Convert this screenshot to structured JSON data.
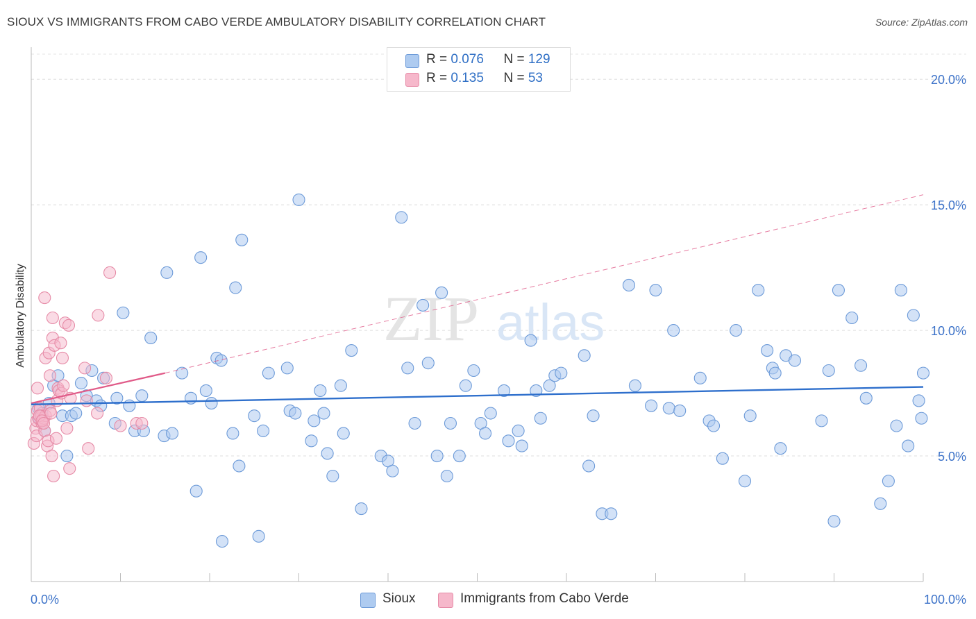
{
  "header": {
    "title": "SIOUX VS IMMIGRANTS FROM CABO VERDE AMBULATORY DISABILITY CORRELATION CHART",
    "source": "Source: ZipAtlas.com"
  },
  "watermark": {
    "part1": "ZIP",
    "part2": "atlas"
  },
  "legend": {
    "rows": [
      {
        "r_label": "R = ",
        "r_value": "0.076",
        "n_label": "N = ",
        "n_value": "129"
      },
      {
        "r_label": "R = ",
        "r_value": " 0.135",
        "n_label": "N = ",
        "n_value": " 53"
      }
    ]
  },
  "colors": {
    "sioux_fill": "#aecbf0",
    "sioux_stroke": "#6c9ad8",
    "sioux_line": "#2e6fcc",
    "cabo_fill": "#f6b8cb",
    "cabo_stroke": "#e68aa6",
    "cabo_line": "#e05a88",
    "axis_label": "#3d73c9"
  },
  "chart_data": {
    "type": "scatter",
    "title": "SIOUX VS IMMIGRANTS FROM CABO VERDE AMBULATORY DISABILITY CORRELATION CHART",
    "xlabel": "",
    "ylabel": "Ambulatory Disability",
    "xlim": [
      0,
      100
    ],
    "ylim": [
      0,
      21
    ],
    "x_tick_labels": [
      "0.0%",
      "100.0%"
    ],
    "y_ticks": [
      5,
      10,
      15,
      20
    ],
    "y_tick_labels": [
      "5.0%",
      "10.0%",
      "15.0%",
      "20.0%"
    ],
    "grid": true,
    "legend_position": "top-center",
    "series": [
      {
        "name": "Sioux",
        "r": 0.076,
        "n": 129,
        "trend": {
          "x0": 0,
          "y0": 7.05,
          "x1": 100,
          "y1": 7.75
        },
        "points": [
          [
            0.8,
            6.9
          ],
          [
            0.9,
            6.5
          ],
          [
            1.2,
            6.7
          ],
          [
            1.5,
            6.0
          ],
          [
            2.0,
            7.1
          ],
          [
            2.5,
            7.8
          ],
          [
            3.0,
            8.2
          ],
          [
            3.5,
            6.6
          ],
          [
            4.0,
            5.0
          ],
          [
            4.5,
            6.6
          ],
          [
            5.0,
            6.7
          ],
          [
            5.6,
            7.9
          ],
          [
            6.2,
            7.4
          ],
          [
            6.8,
            8.4
          ],
          [
            7.3,
            7.2
          ],
          [
            7.8,
            7.0
          ],
          [
            8.1,
            8.1
          ],
          [
            9.4,
            6.3
          ],
          [
            9.6,
            7.3
          ],
          [
            10.3,
            10.7
          ],
          [
            11.0,
            7.0
          ],
          [
            11.6,
            6.0
          ],
          [
            12.4,
            7.4
          ],
          [
            12.6,
            6.0
          ],
          [
            13.4,
            9.7
          ],
          [
            14.9,
            5.8
          ],
          [
            15.2,
            12.3
          ],
          [
            15.8,
            5.9
          ],
          [
            16.9,
            8.3
          ],
          [
            17.9,
            7.3
          ],
          [
            18.5,
            3.6
          ],
          [
            19.0,
            12.9
          ],
          [
            19.6,
            7.6
          ],
          [
            20.2,
            7.1
          ],
          [
            20.8,
            8.9
          ],
          [
            21.3,
            8.8
          ],
          [
            21.4,
            1.6
          ],
          [
            22.6,
            5.9
          ],
          [
            22.9,
            11.7
          ],
          [
            23.3,
            4.6
          ],
          [
            23.6,
            13.6
          ],
          [
            25.0,
            6.6
          ],
          [
            25.5,
            1.8
          ],
          [
            26.0,
            6.0
          ],
          [
            26.6,
            8.3
          ],
          [
            28.7,
            8.5
          ],
          [
            29.0,
            6.8
          ],
          [
            29.6,
            6.7
          ],
          [
            30.0,
            15.2
          ],
          [
            31.4,
            5.6
          ],
          [
            31.7,
            6.4
          ],
          [
            32.4,
            7.6
          ],
          [
            32.8,
            6.7
          ],
          [
            33.2,
            5.1
          ],
          [
            33.8,
            4.2
          ],
          [
            34.7,
            7.8
          ],
          [
            35.0,
            5.9
          ],
          [
            35.9,
            9.2
          ],
          [
            37.0,
            2.9
          ],
          [
            39.2,
            5.0
          ],
          [
            40.0,
            4.8
          ],
          [
            40.5,
            4.4
          ],
          [
            41.5,
            14.5
          ],
          [
            42.2,
            8.5
          ],
          [
            43.0,
            6.3
          ],
          [
            43.9,
            11.0
          ],
          [
            44.5,
            8.7
          ],
          [
            45.5,
            5.0
          ],
          [
            46.0,
            11.5
          ],
          [
            46.6,
            4.2
          ],
          [
            47.0,
            6.3
          ],
          [
            48.0,
            5.0
          ],
          [
            48.7,
            7.8
          ],
          [
            49.6,
            8.4
          ],
          [
            50.4,
            6.3
          ],
          [
            50.9,
            5.9
          ],
          [
            51.5,
            6.7
          ],
          [
            53.0,
            7.6
          ],
          [
            53.5,
            5.6
          ],
          [
            54.6,
            6.0
          ],
          [
            55.0,
            5.4
          ],
          [
            56.0,
            9.6
          ],
          [
            56.6,
            7.6
          ],
          [
            57.1,
            6.5
          ],
          [
            58.1,
            7.8
          ],
          [
            58.7,
            8.2
          ],
          [
            59.4,
            8.3
          ],
          [
            62.0,
            9.0
          ],
          [
            62.5,
            4.6
          ],
          [
            63.0,
            6.6
          ],
          [
            64.0,
            2.7
          ],
          [
            65.0,
            2.7
          ],
          [
            67.0,
            11.8
          ],
          [
            67.7,
            7.8
          ],
          [
            69.5,
            7.0
          ],
          [
            70.0,
            11.6
          ],
          [
            71.5,
            6.9
          ],
          [
            72.0,
            10.0
          ],
          [
            72.7,
            6.8
          ],
          [
            75.0,
            8.1
          ],
          [
            76.0,
            6.4
          ],
          [
            76.5,
            6.2
          ],
          [
            77.5,
            4.9
          ],
          [
            79.0,
            10.0
          ],
          [
            80.0,
            4.0
          ],
          [
            80.6,
            6.6
          ],
          [
            81.5,
            11.6
          ],
          [
            82.5,
            9.2
          ],
          [
            83.1,
            8.5
          ],
          [
            83.4,
            8.3
          ],
          [
            84.0,
            5.3
          ],
          [
            84.6,
            9.0
          ],
          [
            85.6,
            8.8
          ],
          [
            88.6,
            6.4
          ],
          [
            89.4,
            8.4
          ],
          [
            90.0,
            2.4
          ],
          [
            90.5,
            11.6
          ],
          [
            92.0,
            10.5
          ],
          [
            93.0,
            8.6
          ],
          [
            93.6,
            7.3
          ],
          [
            95.2,
            3.1
          ],
          [
            96.1,
            4.0
          ],
          [
            97.0,
            6.2
          ],
          [
            97.5,
            11.6
          ],
          [
            98.3,
            5.4
          ],
          [
            98.9,
            10.6
          ],
          [
            99.5,
            7.2
          ],
          [
            99.8,
            6.5
          ],
          [
            100.0,
            8.3
          ]
        ]
      },
      {
        "name": "Immigrants from Cabo Verde",
        "r": 0.135,
        "n": 53,
        "trend": {
          "x0": 0,
          "y0": 7.1,
          "x1": 15,
          "y1": 8.3
        },
        "trend_extended": {
          "x0": 15,
          "y0": 8.3,
          "x1": 100,
          "y1": 15.4
        },
        "points": [
          [
            0.3,
            5.5
          ],
          [
            0.5,
            6.1
          ],
          [
            0.6,
            6.4
          ],
          [
            0.6,
            5.8
          ],
          [
            0.7,
            7.7
          ],
          [
            0.7,
            6.8
          ],
          [
            0.8,
            6.5
          ],
          [
            1.0,
            6.9
          ],
          [
            1.1,
            6.6
          ],
          [
            1.2,
            6.3
          ],
          [
            1.3,
            6.4
          ],
          [
            1.4,
            6.5
          ],
          [
            1.5,
            6.0
          ],
          [
            1.5,
            11.3
          ],
          [
            1.6,
            8.9
          ],
          [
            1.6,
            6.6
          ],
          [
            1.8,
            5.4
          ],
          [
            1.9,
            5.6
          ],
          [
            2.0,
            9.1
          ],
          [
            2.1,
            6.8
          ],
          [
            2.1,
            8.2
          ],
          [
            2.2,
            6.7
          ],
          [
            2.3,
            5.0
          ],
          [
            2.4,
            9.7
          ],
          [
            2.4,
            10.5
          ],
          [
            2.5,
            4.2
          ],
          [
            2.6,
            9.4
          ],
          [
            2.8,
            5.7
          ],
          [
            2.9,
            7.2
          ],
          [
            3.0,
            7.7
          ],
          [
            3.1,
            7.6
          ],
          [
            3.3,
            9.5
          ],
          [
            3.4,
            7.5
          ],
          [
            3.5,
            8.9
          ],
          [
            3.6,
            7.8
          ],
          [
            3.8,
            10.3
          ],
          [
            4.0,
            6.1
          ],
          [
            4.2,
            10.2
          ],
          [
            4.3,
            4.5
          ],
          [
            4.4,
            7.3
          ],
          [
            6.0,
            8.5
          ],
          [
            6.2,
            7.2
          ],
          [
            6.4,
            5.3
          ],
          [
            7.4,
            6.7
          ],
          [
            7.5,
            10.6
          ],
          [
            8.4,
            8.1
          ],
          [
            8.8,
            12.3
          ],
          [
            10.0,
            6.2
          ],
          [
            11.8,
            6.3
          ],
          [
            12.4,
            6.3
          ],
          [
            0.9,
            6.6
          ],
          [
            1.2,
            6.4
          ],
          [
            1.4,
            6.3
          ]
        ]
      }
    ]
  },
  "bottom_legend": [
    {
      "label": "Sioux"
    },
    {
      "label": "Immigrants from Cabo Verde"
    }
  ]
}
